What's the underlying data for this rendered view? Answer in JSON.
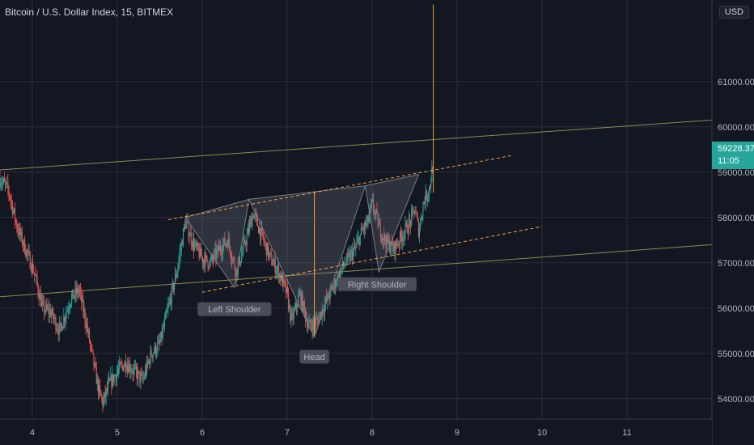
{
  "header": {
    "symbol_title": "Bitcoin / U.S. Dollar Index, 15, BITMEX",
    "currency": "USD"
  },
  "price_axis": {
    "current_price": "59228.37",
    "countdown": "11:05",
    "tag_color": "#26a69a"
  },
  "chart_data": {
    "type": "candlestick",
    "title": "Bitcoin / U.S. Dollar Index, 15, BITMEX",
    "x_ticks": [
      "4",
      "5",
      "6",
      "7",
      "8",
      "9",
      "10",
      "11"
    ],
    "y_ticks": [
      "54000.00",
      "55000.00",
      "56000.00",
      "57000.00",
      "58000.00",
      "59000.00",
      "60000.00",
      "61000.00"
    ],
    "ylim": [
      53550,
      62800
    ],
    "xlim": [
      3.62,
      12.0
    ],
    "grid": true,
    "price_path": [
      [
        3.62,
        58850
      ],
      [
        3.72,
        58600
      ],
      [
        3.82,
        57800
      ],
      [
        3.92,
        57300
      ],
      [
        4.02,
        56800
      ],
      [
        4.12,
        56000
      ],
      [
        4.22,
        55900
      ],
      [
        4.32,
        55500
      ],
      [
        4.45,
        56200
      ],
      [
        4.55,
        56400
      ],
      [
        4.62,
        55800
      ],
      [
        4.7,
        55000
      ],
      [
        4.78,
        54200
      ],
      [
        4.83,
        53900
      ],
      [
        4.9,
        54300
      ],
      [
        5.0,
        54600
      ],
      [
        5.1,
        54800
      ],
      [
        5.2,
        54600
      ],
      [
        5.3,
        54400
      ],
      [
        5.4,
        55000
      ],
      [
        5.5,
        55200
      ],
      [
        5.6,
        56000
      ],
      [
        5.7,
        56800
      ],
      [
        5.8,
        57900
      ],
      [
        5.9,
        57400
      ],
      [
        6.0,
        57100
      ],
      [
        6.1,
        57000
      ],
      [
        6.2,
        57300
      ],
      [
        6.3,
        57500
      ],
      [
        6.4,
        56800
      ],
      [
        6.5,
        57400
      ],
      [
        6.6,
        58100
      ],
      [
        6.7,
        57600
      ],
      [
        6.8,
        57100
      ],
      [
        6.9,
        56800
      ],
      [
        7.0,
        56300
      ],
      [
        7.05,
        55700
      ],
      [
        7.15,
        56300
      ],
      [
        7.25,
        55600
      ],
      [
        7.35,
        55700
      ],
      [
        7.45,
        56100
      ],
      [
        7.55,
        56500
      ],
      [
        7.65,
        56900
      ],
      [
        7.8,
        57300
      ],
      [
        7.88,
        57700
      ],
      [
        7.95,
        57900
      ],
      [
        8.0,
        58300
      ],
      [
        8.1,
        57700
      ],
      [
        8.15,
        57500
      ],
      [
        8.25,
        57300
      ],
      [
        8.35,
        57600
      ],
      [
        8.45,
        57900
      ],
      [
        8.5,
        58200
      ],
      [
        8.55,
        57700
      ],
      [
        8.6,
        58300
      ],
      [
        8.68,
        58700
      ],
      [
        8.72,
        59228
      ]
    ],
    "annotations": {
      "pattern_labels": [
        "Left Shoulder",
        "Head",
        "Right Shoulder"
      ],
      "pattern_points": [
        [
          5.8,
          58000
        ],
        [
          6.38,
          56450
        ],
        [
          6.55,
          58400
        ],
        [
          7.32,
          55350
        ],
        [
          7.92,
          58700
        ],
        [
          8.08,
          56800
        ],
        [
          8.55,
          58950
        ]
      ],
      "upper_dashed_line": [
        [
          5.6,
          57950
        ],
        [
          9.65,
          59370
        ]
      ],
      "lower_dashed_line": [
        [
          6.0,
          56350
        ],
        [
          10.0,
          57800
        ]
      ],
      "channel_line_top": [
        [
          3.62,
          59050
        ],
        [
          12.0,
          60150
        ]
      ],
      "channel_line_bottom": [
        [
          3.62,
          56250
        ],
        [
          12.0,
          57400
        ]
      ],
      "vertical_measure_head": [
        [
          7.32,
          55400
        ],
        [
          7.32,
          58550
        ]
      ],
      "vertical_measure_target": [
        [
          8.72,
          58550
        ],
        [
          8.72,
          62700
        ]
      ]
    }
  }
}
